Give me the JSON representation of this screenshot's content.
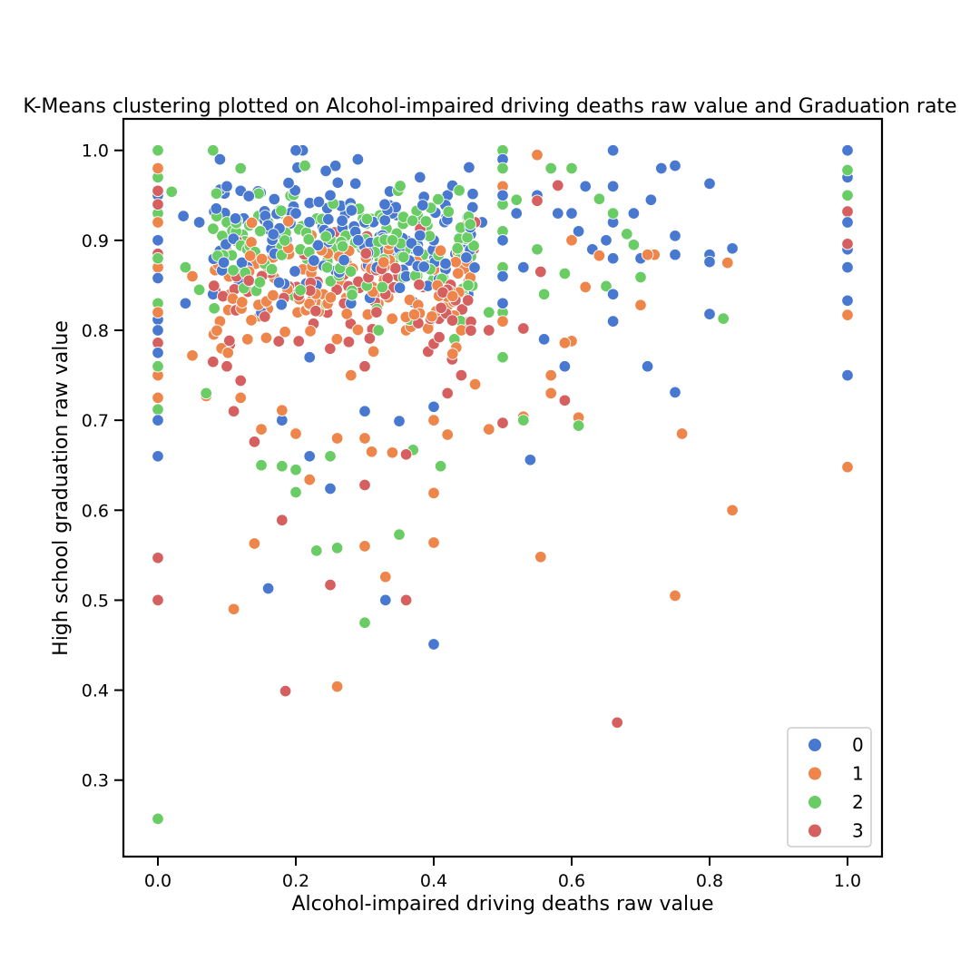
{
  "chart_data": {
    "type": "scatter",
    "title": "K-Means clustering plotted on Alcohol-impaired driving deaths raw value and Graduation rate",
    "xlabel": "Alcohol-impaired driving deaths raw value",
    "ylabel": "High school graduation raw value",
    "xlim": [
      -0.05,
      1.05
    ],
    "ylim": [
      0.215,
      1.035
    ],
    "xticks": [
      "0.0",
      "0.2",
      "0.4",
      "0.6",
      "0.8",
      "1.0"
    ],
    "yticks": [
      "0.3",
      "0.4",
      "0.5",
      "0.6",
      "0.7",
      "0.8",
      "0.9",
      "1.0"
    ],
    "grid": false,
    "legend_position": "bottom-right",
    "series": [
      {
        "name": "0",
        "color": "#4878d0",
        "points": [
          [
            0.0,
            0.66
          ],
          [
            0.0,
            0.7
          ],
          [
            0.0,
            0.775
          ],
          [
            0.0,
            0.8
          ],
          [
            0.0,
            0.812
          ],
          [
            0.0,
            0.858
          ],
          [
            0.0,
            0.9
          ],
          [
            0.0,
            0.95
          ],
          [
            0.0,
            0.98
          ],
          [
            0.037,
            0.927
          ],
          [
            0.04,
            0.83
          ],
          [
            0.06,
            0.92
          ],
          [
            0.08,
            0.84
          ],
          [
            0.09,
            0.99
          ],
          [
            0.1,
            0.96
          ],
          [
            0.12,
            0.955
          ],
          [
            0.13,
            0.87
          ],
          [
            0.15,
            0.82
          ],
          [
            0.16,
            0.513
          ],
          [
            0.17,
            0.9
          ],
          [
            0.18,
            0.7
          ],
          [
            0.2,
            0.93
          ],
          [
            0.2,
            1.0
          ],
          [
            0.21,
            1.0
          ],
          [
            0.22,
            0.66
          ],
          [
            0.22,
            0.77
          ],
          [
            0.23,
            0.85
          ],
          [
            0.25,
            0.95
          ],
          [
            0.25,
            0.624
          ],
          [
            0.27,
            0.88
          ],
          [
            0.28,
            0.83
          ],
          [
            0.29,
            0.99
          ],
          [
            0.3,
            0.71
          ],
          [
            0.3,
            0.92
          ],
          [
            0.32,
            0.89
          ],
          [
            0.33,
            0.5
          ],
          [
            0.34,
            0.93
          ],
          [
            0.35,
            0.699
          ],
          [
            0.36,
            0.86
          ],
          [
            0.38,
            0.97
          ],
          [
            0.4,
            0.451
          ],
          [
            0.4,
            0.715
          ],
          [
            0.4,
            0.9
          ],
          [
            0.42,
            0.95
          ],
          [
            0.45,
            0.84
          ],
          [
            0.47,
            0.92
          ],
          [
            0.5,
            0.99
          ],
          [
            0.5,
            0.95
          ],
          [
            0.5,
            0.9
          ],
          [
            0.5,
            0.86
          ],
          [
            0.5,
            0.83
          ],
          [
            0.52,
            0.93
          ],
          [
            0.53,
            0.87
          ],
          [
            0.54,
            0.656
          ],
          [
            0.55,
            0.95
          ],
          [
            0.56,
            0.79
          ],
          [
            0.58,
            0.93
          ],
          [
            0.59,
            0.76
          ],
          [
            0.6,
            0.93
          ],
          [
            0.61,
            0.91
          ],
          [
            0.62,
            0.96
          ],
          [
            0.63,
            0.89
          ],
          [
            0.65,
            0.9
          ],
          [
            0.66,
            1.0
          ],
          [
            0.66,
            0.96
          ],
          [
            0.66,
            0.92
          ],
          [
            0.66,
            0.88
          ],
          [
            0.66,
            0.84
          ],
          [
            0.66,
            0.81
          ],
          [
            0.69,
            0.93
          ],
          [
            0.7,
            0.88
          ],
          [
            0.71,
            0.76
          ],
          [
            0.715,
            0.945
          ],
          [
            0.73,
            0.98
          ],
          [
            0.75,
            0.983
          ],
          [
            0.75,
            0.905
          ],
          [
            0.75,
            0.884
          ],
          [
            0.75,
            0.731
          ],
          [
            0.8,
            0.963
          ],
          [
            0.8,
            0.884
          ],
          [
            0.8,
            0.876
          ],
          [
            0.8,
            0.818
          ],
          [
            0.833,
            0.891
          ],
          [
            1.0,
            1.0
          ],
          [
            1.0,
            0.97
          ],
          [
            1.0,
            0.92
          ],
          [
            1.0,
            0.89
          ],
          [
            1.0,
            0.87
          ],
          [
            1.0,
            0.833
          ],
          [
            1.0,
            0.75
          ]
        ]
      },
      {
        "name": "1",
        "color": "#ee854a",
        "points": [
          [
            0.0,
            0.98
          ],
          [
            0.0,
            0.92
          ],
          [
            0.0,
            0.87
          ],
          [
            0.0,
            0.82
          ],
          [
            0.0,
            0.75
          ],
          [
            0.0,
            0.725
          ],
          [
            0.05,
            0.86
          ],
          [
            0.05,
            0.772
          ],
          [
            0.07,
            0.727
          ],
          [
            0.09,
            0.81
          ],
          [
            0.11,
            0.49
          ],
          [
            0.12,
            0.725
          ],
          [
            0.13,
            0.79
          ],
          [
            0.14,
            0.563
          ],
          [
            0.15,
            0.69
          ],
          [
            0.18,
            0.711
          ],
          [
            0.2,
            0.685
          ],
          [
            0.22,
            0.634
          ],
          [
            0.24,
            0.84
          ],
          [
            0.26,
            0.68
          ],
          [
            0.26,
            0.404
          ],
          [
            0.28,
            0.75
          ],
          [
            0.3,
            0.56
          ],
          [
            0.3,
            0.68
          ],
          [
            0.31,
            0.665
          ],
          [
            0.33,
            0.526
          ],
          [
            0.34,
            0.664
          ],
          [
            0.36,
            0.8
          ],
          [
            0.38,
            0.85
          ],
          [
            0.4,
            0.619
          ],
          [
            0.4,
            0.564
          ],
          [
            0.4,
            0.7
          ],
          [
            0.42,
            0.684
          ],
          [
            0.44,
            0.8
          ],
          [
            0.46,
            0.74
          ],
          [
            0.48,
            0.69
          ],
          [
            0.5,
            0.96
          ],
          [
            0.5,
            0.81
          ],
          [
            0.53,
            0.704
          ],
          [
            0.55,
            0.995
          ],
          [
            0.555,
            0.548
          ],
          [
            0.57,
            0.75
          ],
          [
            0.57,
            0.73
          ],
          [
            0.58,
            0.96
          ],
          [
            0.59,
            0.786
          ],
          [
            0.6,
            0.9
          ],
          [
            0.6,
            0.788
          ],
          [
            0.61,
            0.703
          ],
          [
            0.62,
            0.848
          ],
          [
            0.64,
            0.883
          ],
          [
            0.7,
            0.828
          ],
          [
            0.71,
            0.884
          ],
          [
            0.72,
            0.884
          ],
          [
            0.75,
            0.505
          ],
          [
            0.76,
            0.685
          ],
          [
            0.826,
            0.875
          ],
          [
            0.833,
            0.6
          ],
          [
            1.0,
            0.817
          ],
          [
            1.0,
            0.648
          ]
        ]
      },
      {
        "name": "2",
        "color": "#6acc64",
        "points": [
          [
            0.0,
            1.0
          ],
          [
            0.0,
            0.97
          ],
          [
            0.0,
            0.93
          ],
          [
            0.0,
            0.88
          ],
          [
            0.0,
            0.83
          ],
          [
            0.0,
            0.76
          ],
          [
            0.0,
            0.712
          ],
          [
            0.0,
            0.257
          ],
          [
            0.02,
            0.954
          ],
          [
            0.04,
            0.87
          ],
          [
            0.06,
            0.845
          ],
          [
            0.07,
            0.73
          ],
          [
            0.08,
            1.0
          ],
          [
            0.1,
            0.92
          ],
          [
            0.12,
            0.98
          ],
          [
            0.15,
            0.65
          ],
          [
            0.16,
            0.92
          ],
          [
            0.18,
            0.649
          ],
          [
            0.2,
            0.645
          ],
          [
            0.2,
            0.62
          ],
          [
            0.23,
            0.555
          ],
          [
            0.25,
            0.66
          ],
          [
            0.26,
            0.558
          ],
          [
            0.3,
            0.475
          ],
          [
            0.32,
            0.8
          ],
          [
            0.34,
            0.9
          ],
          [
            0.35,
            0.573
          ],
          [
            0.37,
            0.667
          ],
          [
            0.4,
            0.88
          ],
          [
            0.41,
            0.649
          ],
          [
            0.43,
            0.79
          ],
          [
            0.45,
            0.85
          ],
          [
            0.48,
            0.82
          ],
          [
            0.5,
            1.0
          ],
          [
            0.5,
            0.98
          ],
          [
            0.5,
            0.94
          ],
          [
            0.5,
            0.91
          ],
          [
            0.5,
            0.87
          ],
          [
            0.5,
            0.82
          ],
          [
            0.5,
            0.77
          ],
          [
            0.52,
            0.945
          ],
          [
            0.53,
            0.7
          ],
          [
            0.55,
            0.89
          ],
          [
            0.56,
            0.84
          ],
          [
            0.57,
            0.98
          ],
          [
            0.59,
            0.863
          ],
          [
            0.6,
            0.98
          ],
          [
            0.61,
            0.694
          ],
          [
            0.64,
            0.946
          ],
          [
            0.65,
            0.849
          ],
          [
            0.66,
            0.93
          ],
          [
            0.68,
            0.907
          ],
          [
            0.69,
            0.895
          ],
          [
            0.7,
            0.859
          ],
          [
            0.82,
            0.813
          ],
          [
            1.0,
            0.978
          ],
          [
            1.0,
            0.95
          ]
        ]
      },
      {
        "name": "3",
        "color": "#d65f5f",
        "points": [
          [
            0.0,
            0.955
          ],
          [
            0.0,
            0.94
          ],
          [
            0.0,
            0.885
          ],
          [
            0.0,
            0.786
          ],
          [
            0.0,
            0.547
          ],
          [
            0.0,
            0.5
          ],
          [
            0.08,
            0.765
          ],
          [
            0.1,
            0.76
          ],
          [
            0.11,
            0.71
          ],
          [
            0.12,
            0.744
          ],
          [
            0.14,
            0.676
          ],
          [
            0.18,
            0.589
          ],
          [
            0.185,
            0.399
          ],
          [
            0.2,
            0.686
          ],
          [
            0.25,
            0.517
          ],
          [
            0.27,
            0.83
          ],
          [
            0.3,
            0.628
          ],
          [
            0.3,
            0.76
          ],
          [
            0.33,
            0.84
          ],
          [
            0.36,
            0.5
          ],
          [
            0.36,
            0.662
          ],
          [
            0.38,
            0.87
          ],
          [
            0.4,
            0.785
          ],
          [
            0.42,
            0.73
          ],
          [
            0.44,
            0.75
          ],
          [
            0.46,
            0.92
          ],
          [
            0.48,
            0.8
          ],
          [
            0.5,
            0.697
          ],
          [
            0.53,
            0.802
          ],
          [
            0.55,
            0.944
          ],
          [
            0.555,
            0.865
          ],
          [
            0.58,
            0.961
          ],
          [
            0.59,
            0.722
          ],
          [
            0.666,
            0.364
          ],
          [
            1.0,
            0.932
          ],
          [
            1.0,
            0.896
          ]
        ]
      }
    ],
    "dense_cluster": {
      "x_range": [
        0.08,
        0.46
      ],
      "y_center": 0.885,
      "y_spread": 0.06,
      "count_per_series": [
        150,
        120,
        150,
        90
      ]
    }
  }
}
